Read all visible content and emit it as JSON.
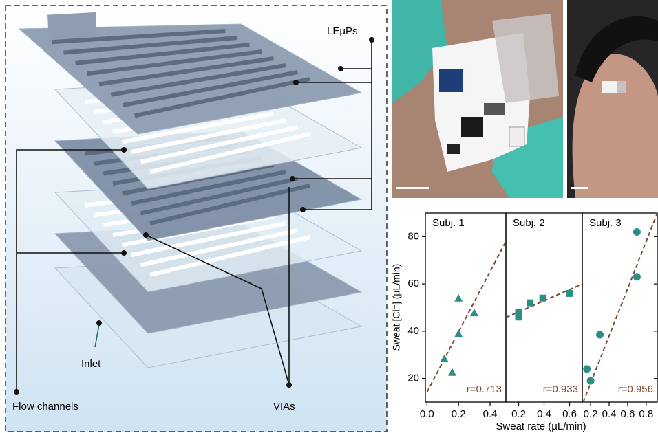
{
  "diagram": {
    "labels": {
      "top_layer": "LEμPs",
      "channels": "Flow channels",
      "vias": "VIAs",
      "inlet": "Inlet"
    }
  },
  "chart_data": {
    "type": "scatter",
    "y_label": "Sweat [Cl⁻] (μL/min)",
    "x_label": "Sweat rate (μL/min)",
    "ylim": [
      10,
      90
    ],
    "yticks": [
      20,
      40,
      60,
      80
    ],
    "marker_color": "#2a8f85",
    "fit_color": "#7a4a2e",
    "panels": [
      {
        "title": "Subj. 1",
        "marker": "triangle",
        "xlim": [
          -0.01,
          0.5
        ],
        "xticks": [
          {
            "value": 0,
            "label": "0.0"
          },
          0.2,
          0.4
        ],
        "x": [
          0.11,
          0.16,
          0.2,
          0.2,
          0.3
        ],
        "values": [
          28.4,
          22.6,
          39,
          54,
          47.8
        ],
        "fit": {
          "x": [
            0,
            0.5
          ],
          "values": [
            14.2,
            78
          ]
        },
        "annotation": "r=0.713"
      },
      {
        "title": "Subj. 2",
        "marker": "square",
        "xlim": [
          0.1,
          0.7
        ],
        "xticks": [
          0.2,
          0.4,
          0.6
        ],
        "x": [
          0.2,
          0.2,
          0.29,
          0.39,
          0.6
        ],
        "values": [
          46,
          48,
          52,
          54,
          56
        ],
        "fit": {
          "x": [
            0.1,
            0.7
          ],
          "values": [
            45.8,
            60
          ]
        },
        "annotation": "r=0.933"
      },
      {
        "title": "Subj. 3",
        "marker": "circle",
        "xlim": [
          0.11,
          0.92
        ],
        "xticks": [
          0.2,
          0.4,
          0.6,
          0.8
        ],
        "x": [
          0.16,
          0.2,
          0.3,
          0.7,
          0.7
        ],
        "values": [
          24,
          19,
          38.5,
          82,
          63
        ],
        "fit": {
          "x": [
            0.12,
            0.92
          ],
          "values": [
            10,
            90
          ]
        },
        "annotation": "r=0.956"
      }
    ]
  }
}
